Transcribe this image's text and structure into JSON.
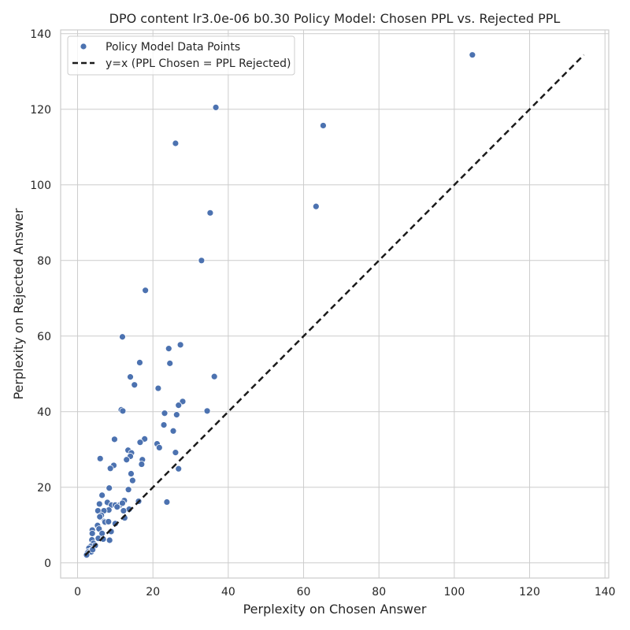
{
  "chart_data": {
    "type": "scatter",
    "title": "DPO content lr3.0e-06 b0.30 Policy Model: Chosen PPL vs. Rejected PPL",
    "xlabel": "Perplexity on Chosen Answer",
    "ylabel": "Perplexity on Rejected Answer",
    "xlim": [
      -4.5,
      141
    ],
    "ylim": [
      -4,
      141
    ],
    "xticks": [
      0,
      20,
      40,
      60,
      80,
      100,
      120,
      140
    ],
    "yticks": [
      0,
      20,
      40,
      60,
      80,
      100,
      120,
      140
    ],
    "grid": true,
    "legend_placement": "top-left",
    "colors": {
      "points": "#4c72b0",
      "line": "#1a1a1a",
      "grid": "#cccccc",
      "spine": "#cccccc"
    },
    "series": [
      {
        "name": "Policy Model Data Points",
        "kind": "scatter",
        "points": [
          [
            104.8,
            134.4
          ],
          [
            36.7,
            120.5
          ],
          [
            65.2,
            115.7
          ],
          [
            26.0,
            111.0
          ],
          [
            63.3,
            94.3
          ],
          [
            35.2,
            92.6
          ],
          [
            32.9,
            80.0
          ],
          [
            18.0,
            72.1
          ],
          [
            11.9,
            59.8
          ],
          [
            27.3,
            57.7
          ],
          [
            24.2,
            56.7
          ],
          [
            16.5,
            53.0
          ],
          [
            24.5,
            52.8
          ],
          [
            36.3,
            49.3
          ],
          [
            14.0,
            49.2
          ],
          [
            15.1,
            47.1
          ],
          [
            21.4,
            46.2
          ],
          [
            27.9,
            42.7
          ],
          [
            26.8,
            41.7
          ],
          [
            34.4,
            40.2
          ],
          [
            11.6,
            40.5
          ],
          [
            12.0,
            40.2
          ],
          [
            23.1,
            39.6
          ],
          [
            26.3,
            39.2
          ],
          [
            22.9,
            36.5
          ],
          [
            25.4,
            34.9
          ],
          [
            9.8,
            32.7
          ],
          [
            17.8,
            32.8
          ],
          [
            16.6,
            31.9
          ],
          [
            21.1,
            31.5
          ],
          [
            21.7,
            30.5
          ],
          [
            13.4,
            29.8
          ],
          [
            14.3,
            29.1
          ],
          [
            26.0,
            29.2
          ],
          [
            14.0,
            28.2
          ],
          [
            6.0,
            27.6
          ],
          [
            13.0,
            27.3
          ],
          [
            17.2,
            27.3
          ],
          [
            17.0,
            26.1
          ],
          [
            9.6,
            25.8
          ],
          [
            8.7,
            25.0
          ],
          [
            26.8,
            24.9
          ],
          [
            14.2,
            23.6
          ],
          [
            14.6,
            21.8
          ],
          [
            8.4,
            19.8
          ],
          [
            13.5,
            19.4
          ],
          [
            6.5,
            17.9
          ],
          [
            23.7,
            16.1
          ],
          [
            16.2,
            16.3
          ],
          [
            7.9,
            16.0
          ],
          [
            5.8,
            15.6
          ],
          [
            9.0,
            15.3
          ],
          [
            10.0,
            15.3
          ],
          [
            11.2,
            15.3
          ],
          [
            12.4,
            16.5
          ],
          [
            11.9,
            15.8
          ],
          [
            10.5,
            14.8
          ],
          [
            8.3,
            14.0
          ],
          [
            13.7,
            14.2
          ],
          [
            5.4,
            13.8
          ],
          [
            7.0,
            13.8
          ],
          [
            12.2,
            13.8
          ],
          [
            6.3,
            12.6
          ],
          [
            5.9,
            12.2
          ],
          [
            7.1,
            11.0
          ],
          [
            12.5,
            11.9
          ],
          [
            7.3,
            10.8
          ],
          [
            8.2,
            10.9
          ],
          [
            10.0,
            10.4
          ],
          [
            5.3,
            9.9
          ],
          [
            5.7,
            9.0
          ],
          [
            3.9,
            8.7
          ],
          [
            8.9,
            8.3
          ],
          [
            3.9,
            7.8
          ],
          [
            6.5,
            7.8
          ],
          [
            5.5,
            6.5
          ],
          [
            6.8,
            6.3
          ],
          [
            8.5,
            6.0
          ],
          [
            3.8,
            6.1
          ],
          [
            4.2,
            5.2
          ],
          [
            3.5,
            4.4
          ],
          [
            4.7,
            4.6
          ],
          [
            3.0,
            3.9
          ],
          [
            3.6,
            3.3
          ],
          [
            2.8,
            3.0
          ],
          [
            3.3,
            2.8
          ],
          [
            2.6,
            2.6
          ],
          [
            3.6,
            2.9
          ],
          [
            4.0,
            3.5
          ],
          [
            2.4,
            2.1
          ]
        ]
      },
      {
        "name": "y=x (PPL Chosen = PPL Rejected)",
        "kind": "line",
        "style": "dashed",
        "points": [
          [
            2.0,
            2.0
          ],
          [
            134.4,
            134.4
          ]
        ]
      }
    ]
  }
}
